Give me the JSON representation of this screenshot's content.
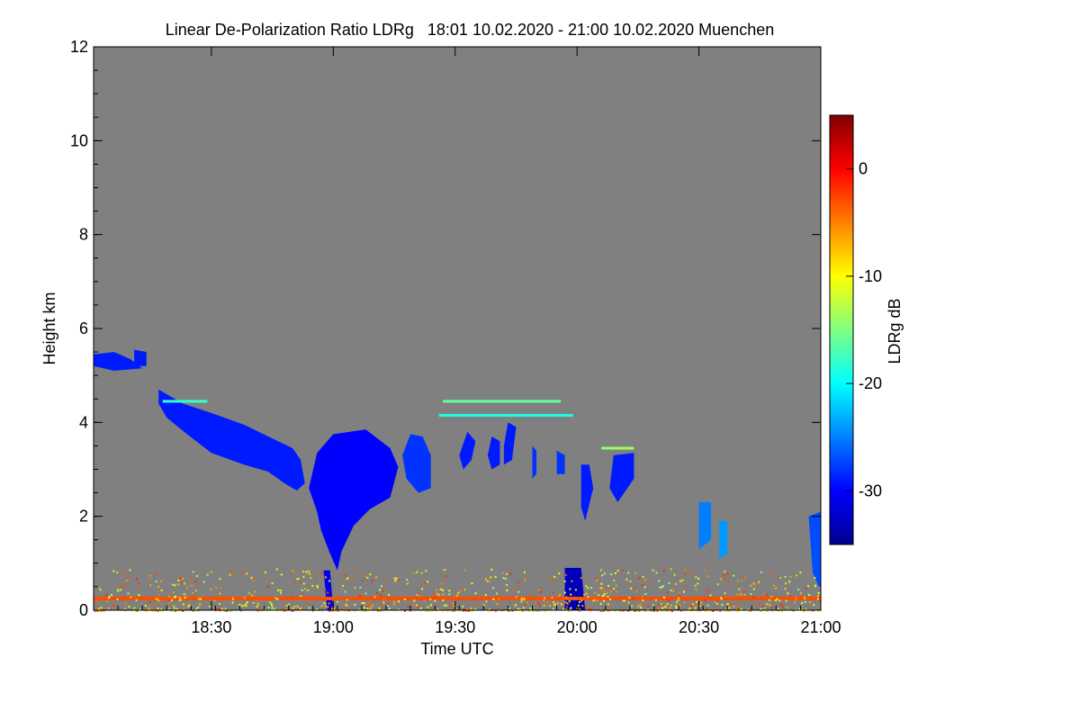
{
  "chart_data": {
    "type": "heatmap",
    "title": "Linear De-Polarization Ratio LDRg   18:01 10.02.2020 - 21:00 10.02.2020 Muenchen",
    "xlabel": "Time UTC",
    "ylabel": "Height km",
    "x_range_minutes": [
      1081,
      1260
    ],
    "x_ticks": [
      {
        "minute": 1110,
        "label": "18:30"
      },
      {
        "minute": 1140,
        "label": "19:00"
      },
      {
        "minute": 1170,
        "label": "19:30"
      },
      {
        "minute": 1200,
        "label": "20:00"
      },
      {
        "minute": 1230,
        "label": "20:30"
      },
      {
        "minute": 1260,
        "label": "21:00"
      }
    ],
    "ylim": [
      0,
      12
    ],
    "y_ticks": [
      0,
      2,
      4,
      6,
      8,
      10,
      12
    ],
    "background": "#808080",
    "colorbar": {
      "label": "LDRg dB",
      "range": [
        -35,
        5
      ],
      "ticks": [
        0,
        -10,
        -20,
        -30
      ],
      "colors": [
        "#00008f",
        "#0000ff",
        "#0080ff",
        "#00ffff",
        "#80ff80",
        "#ffff00",
        "#ff8000",
        "#ff0000",
        "#800000"
      ]
    },
    "regions": [
      {
        "name": "high-cloud-remnant",
        "points": [
          [
            1081,
            5.45
          ],
          [
            1086,
            5.5
          ],
          [
            1090,
            5.35
          ],
          [
            1093,
            5.15
          ],
          [
            1086,
            5.1
          ],
          [
            1081,
            5.2
          ]
        ],
        "ldr": -29
      },
      {
        "name": "high-cloud-fragment",
        "points": [
          [
            1091,
            5.55
          ],
          [
            1094,
            5.5
          ],
          [
            1094,
            5.2
          ],
          [
            1091,
            5.2
          ]
        ],
        "ldr": -29
      },
      {
        "name": "descending-layer",
        "points": [
          [
            1097,
            4.7
          ],
          [
            1103,
            4.4
          ],
          [
            1110,
            4.2
          ],
          [
            1118,
            3.95
          ],
          [
            1124,
            3.7
          ],
          [
            1130,
            3.45
          ],
          [
            1132,
            3.2
          ],
          [
            1133,
            2.7
          ],
          [
            1131,
            2.55
          ],
          [
            1128,
            2.7
          ],
          [
            1124,
            2.95
          ],
          [
            1118,
            3.1
          ],
          [
            1110,
            3.35
          ],
          [
            1104,
            3.75
          ],
          [
            1099,
            4.1
          ],
          [
            1097,
            4.4
          ]
        ],
        "ldr": -29
      },
      {
        "name": "main-cloud",
        "points": [
          [
            1134,
            2.6
          ],
          [
            1136,
            3.35
          ],
          [
            1140,
            3.75
          ],
          [
            1148,
            3.85
          ],
          [
            1154,
            3.45
          ],
          [
            1156,
            3.05
          ],
          [
            1154,
            2.4
          ],
          [
            1149,
            2.15
          ],
          [
            1145,
            1.8
          ],
          [
            1142,
            1.25
          ],
          [
            1141,
            0.85
          ],
          [
            1139,
            1.25
          ],
          [
            1137,
            1.7
          ],
          [
            1136,
            2.1
          ]
        ],
        "ldr": -30
      },
      {
        "name": "cloud-east",
        "points": [
          [
            1159,
            3.75
          ],
          [
            1162,
            3.7
          ],
          [
            1164,
            3.3
          ],
          [
            1164,
            2.6
          ],
          [
            1161,
            2.5
          ],
          [
            1158,
            2.8
          ],
          [
            1157,
            3.3
          ]
        ],
        "ldr": -28
      },
      {
        "name": "cloud-patch-a",
        "points": [
          [
            1173,
            3.8
          ],
          [
            1175,
            3.6
          ],
          [
            1174,
            3.2
          ],
          [
            1172,
            3.0
          ],
          [
            1171,
            3.3
          ]
        ],
        "ldr": -29
      },
      {
        "name": "cloud-patch-b",
        "points": [
          [
            1179,
            3.7
          ],
          [
            1181,
            3.6
          ],
          [
            1181,
            3.1
          ],
          [
            1179,
            3.0
          ],
          [
            1178,
            3.3
          ]
        ],
        "ldr": -29
      },
      {
        "name": "cloud-patch-c",
        "points": [
          [
            1183,
            4.0
          ],
          [
            1185,
            3.9
          ],
          [
            1184,
            3.2
          ],
          [
            1182,
            3.1
          ],
          [
            1182,
            3.5
          ]
        ],
        "ldr": -29
      },
      {
        "name": "virga-column-1",
        "points": [
          [
            1189,
            3.5
          ],
          [
            1190,
            3.4
          ],
          [
            1190,
            2.9
          ],
          [
            1189,
            2.8
          ]
        ],
        "ldr": -28
      },
      {
        "name": "virga-column-2",
        "points": [
          [
            1195,
            3.4
          ],
          [
            1197,
            3.3
          ],
          [
            1197,
            2.9
          ],
          [
            1195,
            2.9
          ]
        ],
        "ldr": -28
      },
      {
        "name": "virga-column-3",
        "points": [
          [
            1201,
            3.1
          ],
          [
            1203,
            3.1
          ],
          [
            1204,
            2.6
          ],
          [
            1202,
            1.9
          ],
          [
            1201,
            2.2
          ]
        ],
        "ldr": -29
      },
      {
        "name": "virga-column-4",
        "points": [
          [
            1209,
            3.3
          ],
          [
            1214,
            3.35
          ],
          [
            1214,
            2.8
          ],
          [
            1210,
            2.3
          ],
          [
            1208,
            2.6
          ]
        ],
        "ldr": -29
      },
      {
        "name": "low-cloud-a",
        "points": [
          [
            1230,
            2.3
          ],
          [
            1233,
            2.3
          ],
          [
            1233,
            1.5
          ],
          [
            1230,
            1.3
          ]
        ],
        "ldr": -25
      },
      {
        "name": "low-cloud-b",
        "points": [
          [
            1235,
            1.9
          ],
          [
            1237,
            1.9
          ],
          [
            1237,
            1.2
          ],
          [
            1235,
            1.1
          ]
        ],
        "ldr": -24
      },
      {
        "name": "low-cloud-c",
        "points": [
          [
            1257,
            2.0
          ],
          [
            1260,
            2.1
          ],
          [
            1260,
            0.4
          ],
          [
            1258,
            0.8
          ]
        ],
        "ldr": -27
      },
      {
        "name": "precip-shaft-1",
        "points": [
          [
            1137.6,
            0.85
          ],
          [
            1139.2,
            0.85
          ],
          [
            1140,
            0
          ],
          [
            1138.5,
            0
          ]
        ],
        "ldr": -31
      },
      {
        "name": "precip-shaft-2",
        "points": [
          [
            1197,
            0.9
          ],
          [
            1201,
            0.9
          ],
          [
            1202,
            0
          ],
          [
            1197,
            0
          ]
        ],
        "ldr": -33
      }
    ],
    "layers": [
      {
        "name": "mid-level-streak",
        "x_range": [
          1098,
          1109
        ],
        "height": 4.45,
        "ldr": -18
      },
      {
        "name": "mid-level-streak",
        "x_range": [
          1167,
          1196
        ],
        "height": 4.45,
        "ldr": -16
      },
      {
        "name": "mid-level-streak",
        "x_range": [
          1166,
          1199
        ],
        "height": 4.15,
        "ldr": -19
      },
      {
        "name": "mid-level-streak",
        "x_range": [
          1206,
          1214
        ],
        "height": 3.45,
        "ldr": -14
      },
      {
        "name": "surface-layer",
        "x_range": [
          1081,
          1260
        ],
        "height": 0.25,
        "ldr": -3
      }
    ]
  }
}
